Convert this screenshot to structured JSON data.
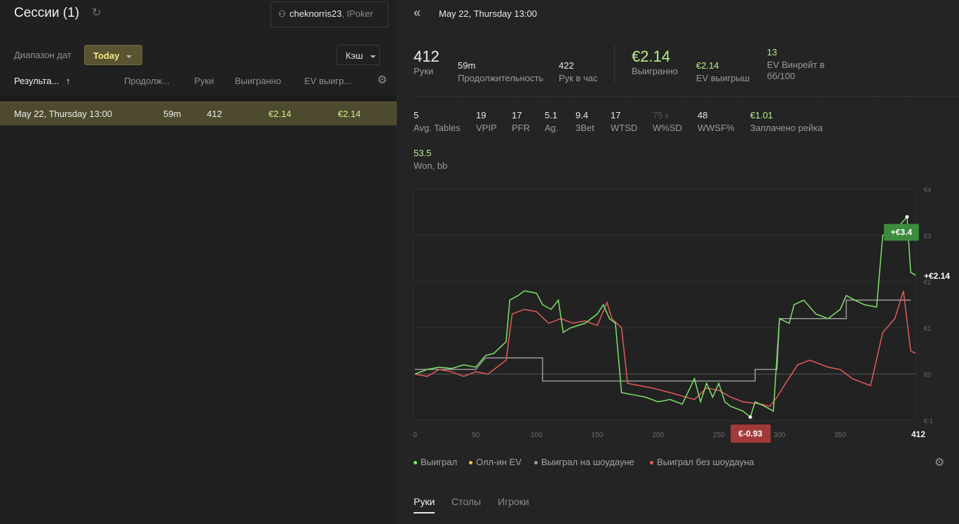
{
  "left": {
    "title": "Сессии (1)",
    "user": "cheknorris23",
    "network": ", IPoker",
    "range_label": "Диапазон дат",
    "range_value": "Today",
    "game_type": "Кэш",
    "columns": [
      "Результа...",
      "Продолж...",
      "Руки",
      "Выигранно",
      "EV выигр..."
    ],
    "sort_arrow": "↑",
    "sessions": [
      {
        "date": "May 22, Thursday 13:00",
        "duration": "59m",
        "hands": "412",
        "won": "€2.14",
        "ev_won": "€2.14"
      }
    ]
  },
  "right": {
    "back_glyph": "«",
    "title": "May 22, Thursday 13:00",
    "summary": [
      {
        "value": "412",
        "label": "Руки"
      },
      {
        "value": "59m",
        "label": "Продолжительность"
      },
      {
        "value": "422",
        "label": "Рук в час"
      },
      {
        "value": "€2.14",
        "label": "Выигранно"
      },
      {
        "value": "€2.14",
        "label": "EV выигрыш"
      },
      {
        "value": "13",
        "label": "EV Винрейт в",
        "label2": "бб/100"
      }
    ],
    "stats": [
      {
        "value": "5",
        "label": "Avg. Tables"
      },
      {
        "value": "19",
        "label": "VPIP"
      },
      {
        "value": "17",
        "label": "PFR"
      },
      {
        "value": "5.1",
        "label": "Ag."
      },
      {
        "value": "9.4",
        "label": "3Bet"
      },
      {
        "value": "17",
        "label": "WTSD"
      },
      {
        "value": "75",
        "sub": "8",
        "label": "W%SD"
      },
      {
        "value": "48",
        "label": "WWSF%"
      },
      {
        "value": "€1.01",
        "label": "Заплачено рейка"
      },
      {
        "value": "53.5",
        "label": "Won, bb"
      }
    ],
    "legend": [
      {
        "label": "Выиграл",
        "color": "#7ee36a"
      },
      {
        "label": "Олл-ин EV",
        "color": "#e8c34a"
      },
      {
        "label": "Выиграл на шоудауне",
        "color": "#9a9a9a"
      },
      {
        "label": "Выиграл без шоудауна",
        "color": "#e35a5a"
      }
    ],
    "tabs": [
      "Руки",
      "Столы",
      "Игроки"
    ]
  },
  "chart_data": {
    "type": "line",
    "xlim": [
      0,
      412
    ],
    "ylim": [
      -1,
      4
    ],
    "x_ticks": [
      "0",
      "50",
      "100",
      "150",
      "200",
      "250",
      "300",
      "350"
    ],
    "x_end_label": "412",
    "y_ticks": [
      "€-1",
      "€0",
      "€1",
      "€2",
      "€3",
      "€4"
    ],
    "grid": true,
    "max_label": "+€3.4",
    "min_label": "€-0.93",
    "end_label": "+€2.14",
    "series": [
      {
        "name": "Выиграл",
        "color": "#7ee36a",
        "points": [
          [
            0,
            0.0
          ],
          [
            10,
            0.1
          ],
          [
            20,
            0.15
          ],
          [
            30,
            0.12
          ],
          [
            40,
            0.2
          ],
          [
            50,
            0.15
          ],
          [
            58,
            0.4
          ],
          [
            65,
            0.45
          ],
          [
            75,
            0.7
          ],
          [
            78,
            1.6
          ],
          [
            85,
            1.7
          ],
          [
            90,
            1.8
          ],
          [
            100,
            1.75
          ],
          [
            105,
            1.5
          ],
          [
            112,
            1.4
          ],
          [
            118,
            1.6
          ],
          [
            122,
            0.9
          ],
          [
            128,
            1.0
          ],
          [
            140,
            1.1
          ],
          [
            150,
            1.3
          ],
          [
            155,
            1.5
          ],
          [
            160,
            1.2
          ],
          [
            165,
            1.1
          ],
          [
            170,
            -0.4
          ],
          [
            180,
            -0.45
          ],
          [
            190,
            -0.5
          ],
          [
            200,
            -0.6
          ],
          [
            210,
            -0.55
          ],
          [
            220,
            -0.65
          ],
          [
            230,
            -0.1
          ],
          [
            235,
            -0.6
          ],
          [
            240,
            -0.2
          ],
          [
            245,
            -0.5
          ],
          [
            250,
            -0.2
          ],
          [
            255,
            -0.6
          ],
          [
            260,
            -0.7
          ],
          [
            270,
            -0.8
          ],
          [
            276,
            -0.93
          ],
          [
            280,
            -0.6
          ],
          [
            288,
            -0.7
          ],
          [
            295,
            -0.8
          ],
          [
            300,
            1.2
          ],
          [
            308,
            1.1
          ],
          [
            312,
            1.5
          ],
          [
            320,
            1.6
          ],
          [
            330,
            1.3
          ],
          [
            340,
            1.2
          ],
          [
            350,
            1.4
          ],
          [
            355,
            1.7
          ],
          [
            362,
            1.6
          ],
          [
            370,
            1.5
          ],
          [
            380,
            1.45
          ],
          [
            385,
            3.0
          ],
          [
            395,
            3.1
          ],
          [
            405,
            3.4
          ],
          [
            408,
            2.2
          ],
          [
            412,
            2.14
          ]
        ]
      },
      {
        "name": "Выиграл без шоудауна",
        "color": "#e35a5a",
        "points": [
          [
            0,
            0.0
          ],
          [
            10,
            -0.05
          ],
          [
            20,
            0.1
          ],
          [
            30,
            0.05
          ],
          [
            40,
            -0.05
          ],
          [
            50,
            0.05
          ],
          [
            60,
            0.0
          ],
          [
            75,
            0.3
          ],
          [
            80,
            1.3
          ],
          [
            90,
            1.4
          ],
          [
            100,
            1.35
          ],
          [
            110,
            1.1
          ],
          [
            120,
            1.2
          ],
          [
            130,
            1.1
          ],
          [
            140,
            1.15
          ],
          [
            150,
            1.05
          ],
          [
            158,
            1.55
          ],
          [
            162,
            1.2
          ],
          [
            170,
            1.0
          ],
          [
            175,
            -0.2
          ],
          [
            185,
            -0.25
          ],
          [
            195,
            -0.3
          ],
          [
            210,
            -0.4
          ],
          [
            230,
            -0.55
          ],
          [
            240,
            -0.3
          ],
          [
            250,
            -0.35
          ],
          [
            260,
            -0.5
          ],
          [
            270,
            -0.6
          ],
          [
            285,
            -0.65
          ],
          [
            292,
            -0.7
          ],
          [
            298,
            -0.5
          ],
          [
            305,
            -0.2
          ],
          [
            315,
            0.2
          ],
          [
            325,
            0.3
          ],
          [
            340,
            0.15
          ],
          [
            350,
            0.1
          ],
          [
            360,
            -0.1
          ],
          [
            375,
            -0.25
          ],
          [
            385,
            0.9
          ],
          [
            395,
            1.2
          ],
          [
            402,
            1.8
          ],
          [
            408,
            0.5
          ],
          [
            412,
            0.45
          ]
        ]
      },
      {
        "name": "Выиграл на шоудауне",
        "color": "#9a9a9a",
        "points": [
          [
            0,
            0.1
          ],
          [
            50,
            0.1
          ],
          [
            58,
            0.35
          ],
          [
            105,
            0.35
          ],
          [
            105,
            -0.15
          ],
          [
            280,
            -0.15
          ],
          [
            280,
            0.1
          ],
          [
            298,
            0.1
          ],
          [
            300,
            1.2
          ],
          [
            355,
            1.2
          ],
          [
            355,
            1.6
          ],
          [
            408,
            1.6
          ]
        ]
      }
    ]
  }
}
